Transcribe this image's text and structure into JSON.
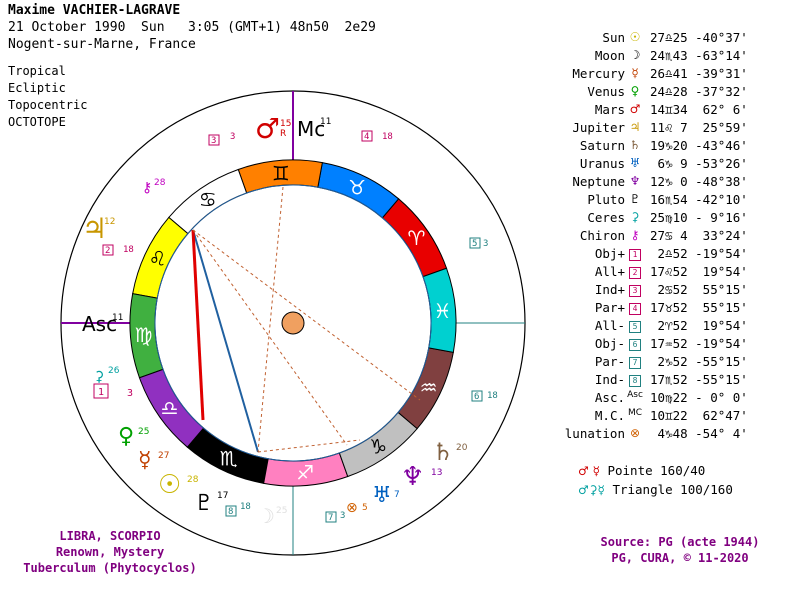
{
  "header": {
    "name": "Maxime VACHIER-LAGRAVE",
    "date_line": "21 October 1990  Sun   3:05 (GMT+1) 48n50  2e29",
    "place": "Nogent-sur-Marne, France"
  },
  "options": [
    "Tropical",
    "Ecliptic",
    "Topocentric",
    "OCTOTOPE"
  ],
  "positions": [
    {
      "name": "Sun",
      "symbol": "sun-glyph",
      "glyph": "☉",
      "color": "#c8b400",
      "value": "27♎25 -40°37'"
    },
    {
      "name": "Moon",
      "symbol": "moon-glyph",
      "glyph": "☽",
      "color": "#000000",
      "value": "24♏43 -63°14'"
    },
    {
      "name": "Mercury",
      "symbol": "mercury-glyph",
      "glyph": "☿",
      "color": "#c04000",
      "value": "26♎41 -39°31'"
    },
    {
      "name": "Venus",
      "symbol": "venus-glyph",
      "glyph": "♀",
      "color": "#00a000",
      "value": "24♎28 -37°32'"
    },
    {
      "name": "Mars",
      "symbol": "mars-glyph",
      "glyph": "♂",
      "color": "#d00000",
      "value": "14♊34  62° 6'"
    },
    {
      "name": "Jupiter",
      "symbol": "jupiter-glyph",
      "glyph": "♃",
      "color": "#c89600",
      "value": "11♌ 7  25°59'"
    },
    {
      "name": "Saturn",
      "symbol": "saturn-glyph",
      "glyph": "♄",
      "color": "#806040",
      "value": "19♑20 -43°46'"
    },
    {
      "name": "Uranus",
      "symbol": "uranus-glyph",
      "glyph": "♅",
      "color": "#0060c0",
      "value": " 6♑ 9 -53°26'"
    },
    {
      "name": "Neptune",
      "symbol": "neptune-glyph",
      "glyph": "♆",
      "color": "#8000a0",
      "value": "12♑ 0 -48°38'"
    },
    {
      "name": "Pluto",
      "symbol": "pluto-glyph",
      "glyph": "♇",
      "color": "#000000",
      "value": "16♏54 -42°10'"
    },
    {
      "name": "Ceres",
      "symbol": "ceres-glyph",
      "glyph": "⚳",
      "color": "#00a0a0",
      "value": "25♍10 - 9°16'"
    },
    {
      "name": "Chiron",
      "symbol": "chiron-glyph",
      "glyph": "⚷",
      "color": "#c000c0",
      "value": "27♋ 4  33°24'"
    },
    {
      "name": "Obj+",
      "symbol": "box-1",
      "glyph": "1",
      "color": "#c00060",
      "value": " 2♎52 -19°54'"
    },
    {
      "name": "All+",
      "symbol": "box-2",
      "glyph": "2",
      "color": "#c00060",
      "value": "17♌52  19°54'"
    },
    {
      "name": "Ind+",
      "symbol": "box-3",
      "glyph": "3",
      "color": "#c00060",
      "value": " 2♋52  55°15'"
    },
    {
      "name": "Par+",
      "symbol": "box-4",
      "glyph": "4",
      "color": "#c00060",
      "value": "17♉52  55°15'"
    },
    {
      "name": "All-",
      "symbol": "box-5",
      "glyph": "5",
      "color": "#208080",
      "value": " 2♈52  19°54'"
    },
    {
      "name": "Obj-",
      "symbol": "box-6",
      "glyph": "6",
      "color": "#208080",
      "value": "17♒52 -19°54'"
    },
    {
      "name": "Par-",
      "symbol": "box-7",
      "glyph": "7",
      "color": "#208080",
      "value": " 2♑52 -55°15'"
    },
    {
      "name": "Ind-",
      "symbol": "box-8",
      "glyph": "8",
      "color": "#208080",
      "value": "17♏52 -55°15'"
    },
    {
      "name": "Asc.",
      "symbol": "asc-glyph",
      "glyph": "Asc",
      "color": "#000000",
      "value": "10♍22 - 0° 0'"
    },
    {
      "name": "M.C.",
      "symbol": "mc-glyph",
      "glyph": "MC",
      "color": "#000000",
      "value": "10♊22  62°47'"
    },
    {
      "name": "lunation",
      "symbol": "lunation-glyph",
      "glyph": "⊗",
      "color": "#d06000",
      "value": " 4♑48 -54° 4'"
    }
  ],
  "aspects": [
    {
      "glyphs": "♂  ☿",
      "label": "Pointe 160/40"
    },
    {
      "glyphs": "♂⚳☿",
      "label": "Triangle 100/160"
    }
  ],
  "theme": [
    "LIBRA, SCORPIO",
    "Renown, Mystery",
    "Tuberculum (Phytocyclos)"
  ],
  "source": [
    "Source: PG (acte 1944)",
    "PG, CURA, © 11-2020"
  ],
  "wheel": {
    "signs": [
      {
        "name": "aries",
        "glyph": "♈",
        "color": "#e80000"
      },
      {
        "name": "taurus",
        "glyph": "♉",
        "color": "#0080ff"
      },
      {
        "name": "gemini",
        "glyph": "♊",
        "color": "#ff8000"
      },
      {
        "name": "cancer",
        "glyph": "♋",
        "color": "#ffffff"
      },
      {
        "name": "leo",
        "glyph": "♌",
        "color": "#ffff00"
      },
      {
        "name": "virgo",
        "glyph": "♍",
        "color": "#40b040"
      },
      {
        "name": "libra",
        "glyph": "♎",
        "color": "#9030c0"
      },
      {
        "name": "scorpio",
        "glyph": "♏",
        "color": "#000000"
      },
      {
        "name": "sagittarius",
        "glyph": "♐",
        "color": "#ff80c0"
      },
      {
        "name": "capricorn",
        "glyph": "♑",
        "color": "#c0c0c0"
      },
      {
        "name": "aquarius",
        "glyph": "♒",
        "color": "#804040"
      },
      {
        "name": "pisces",
        "glyph": "♓",
        "color": "#00d0d0"
      }
    ],
    "asc_label": "Asc",
    "asc_degree": "11",
    "mc_label": "Mc",
    "mc_degree": "11",
    "planets": [
      {
        "name": "mars",
        "glyph": "♂",
        "deg": "15",
        "retro": "R",
        "color": "#d00000"
      },
      {
        "name": "jupiter",
        "glyph": "♃",
        "deg": "12",
        "color": "#c89600"
      },
      {
        "name": "chiron",
        "glyph": "⚷",
        "deg": "28",
        "color": "#c000c0"
      },
      {
        "name": "ceres",
        "glyph": "⚳",
        "deg": "26",
        "color": "#00a0a0"
      },
      {
        "name": "venus",
        "glyph": "♀",
        "deg": "25",
        "color": "#00a000"
      },
      {
        "name": "mercury",
        "glyph": "☿",
        "deg": "27",
        "color": "#c04000"
      },
      {
        "name": "sun",
        "glyph": "☉",
        "deg": "28",
        "color": "#c8b400"
      },
      {
        "name": "pluto",
        "glyph": "♇",
        "deg": "17",
        "color": "#000000"
      },
      {
        "name": "moon",
        "glyph": "☽",
        "deg": "25",
        "color": "#e0e0e0"
      },
      {
        "name": "lunation",
        "glyph": "⊗",
        "deg": "5",
        "color": "#d06000"
      },
      {
        "name": "uranus",
        "glyph": "♅",
        "deg": "7",
        "color": "#0060c0"
      },
      {
        "name": "neptune",
        "glyph": "♆",
        "deg": "13",
        "color": "#8000a0"
      },
      {
        "name": "saturn",
        "glyph": "♄",
        "deg": "20",
        "color": "#806040"
      }
    ],
    "boxes": [
      {
        "num": "1",
        "deg": "3",
        "color": "#c00060"
      },
      {
        "num": "2",
        "deg": "18",
        "color": "#c00060"
      },
      {
        "num": "3",
        "deg": "3",
        "color": "#c00060"
      },
      {
        "num": "4",
        "deg": "18",
        "color": "#c00060"
      },
      {
        "num": "5",
        "deg": "3",
        "color": "#208080"
      },
      {
        "num": "6",
        "deg": "18",
        "color": "#208080"
      },
      {
        "num": "7",
        "deg": "3",
        "color": "#208080"
      },
      {
        "num": "8",
        "deg": "18",
        "color": "#208080"
      }
    ]
  }
}
